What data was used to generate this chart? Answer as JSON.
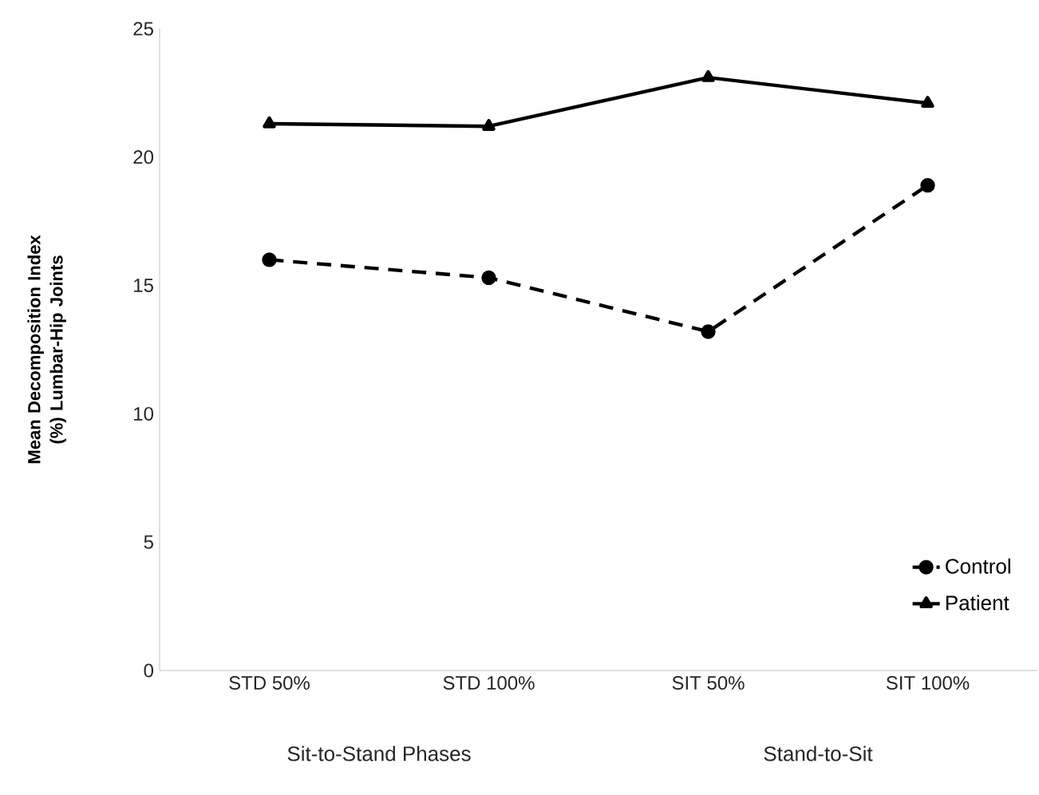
{
  "chart_data": {
    "type": "line",
    "ylabel": "Mean Decomposition Index (%) Lumbar-Hip Joints",
    "categories": [
      "STD 50%",
      "STD 100%",
      "SIT 50%",
      "SIT 100%"
    ],
    "series": [
      {
        "name": "Control",
        "color": "#000000",
        "marker": "circle",
        "line_style": "dashed",
        "values": [
          16.0,
          15.3,
          13.2,
          18.9
        ]
      },
      {
        "name": "Patient",
        "color": "#000000",
        "marker": "triangle",
        "line_style": "solid",
        "values": [
          21.3,
          21.2,
          23.1,
          22.1
        ]
      }
    ],
    "ylim": [
      0,
      25
    ],
    "yticks": [
      0,
      5,
      10,
      15,
      20,
      25
    ],
    "grid": false,
    "legend": "bottom right",
    "annotations": [
      "Sit-to-Stand Phases",
      "Stand-to-Sit"
    ]
  }
}
